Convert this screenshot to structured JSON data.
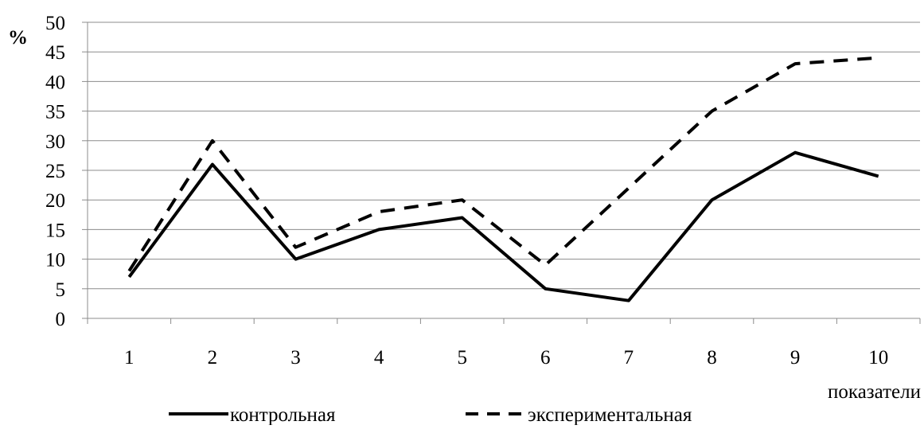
{
  "chart_data": {
    "type": "line",
    "title": "",
    "ylabel": "%",
    "xlabel": "показатели",
    "categories": [
      "1",
      "2",
      "3",
      "4",
      "5",
      "6",
      "7",
      "8",
      "9",
      "10"
    ],
    "ylim": [
      0,
      50
    ],
    "yticks": [
      0,
      5,
      10,
      15,
      20,
      25,
      30,
      35,
      40,
      45,
      50
    ],
    "grid": true,
    "legend_position": "bottom",
    "series": [
      {
        "name": "контрольная",
        "style": "solid",
        "color": "#000000",
        "values": [
          7,
          26,
          10,
          15,
          17,
          5,
          3,
          20,
          28,
          24
        ]
      },
      {
        "name": "экспериментальная",
        "style": "dashed",
        "color": "#000000",
        "values": [
          8,
          30,
          12,
          18,
          20,
          9,
          22,
          35,
          43,
          44
        ]
      }
    ]
  }
}
